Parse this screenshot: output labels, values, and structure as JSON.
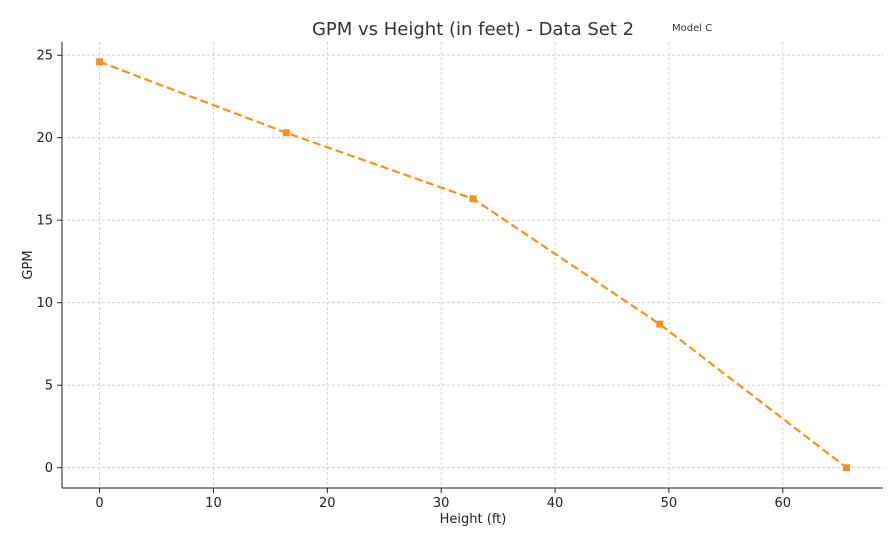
{
  "chart_data": {
    "type": "line",
    "title": "GPM vs Height (in feet) - Data Set 2",
    "annotation": "Model C",
    "xlabel": "Height (ft)",
    "ylabel": "GPM",
    "xlim": [
      -3.3,
      68.8
    ],
    "ylim": [
      -1.23,
      25.8
    ],
    "xticks": [
      0,
      10,
      20,
      30,
      40,
      50,
      60
    ],
    "yticks": [
      0,
      5,
      10,
      15,
      20,
      25
    ],
    "grid": true,
    "series": [
      {
        "x": [
          0,
          16.4,
          32.8,
          49.2,
          65.6
        ],
        "y": [
          24.6,
          20.3,
          16.3,
          8.7,
          0
        ],
        "color": "#f5921e",
        "line_style": "dashed",
        "marker": "square"
      }
    ]
  }
}
